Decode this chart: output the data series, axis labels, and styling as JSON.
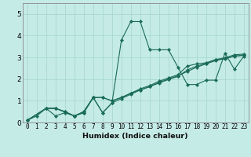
{
  "title": "",
  "xlabel": "Humidex (Indice chaleur)",
  "bg_color": "#c5ebe6",
  "grid_color": "#a8d8d2",
  "line_color": "#1a6b5a",
  "xlim": [
    -0.5,
    23.5
  ],
  "ylim": [
    0,
    5.5
  ],
  "yticks": [
    0,
    1,
    2,
    3,
    4,
    5
  ],
  "xticks": [
    0,
    1,
    2,
    3,
    4,
    5,
    6,
    7,
    8,
    9,
    10,
    11,
    12,
    13,
    14,
    15,
    16,
    17,
    18,
    19,
    20,
    21,
    22,
    23
  ],
  "series": [
    {
      "x": [
        0,
        1,
        2,
        3,
        4,
        5,
        6,
        7,
        8,
        9,
        10,
        11,
        12,
        13,
        14,
        15,
        16,
        17,
        18,
        19,
        20,
        21,
        22,
        23
      ],
      "y": [
        0.1,
        0.3,
        0.65,
        0.3,
        0.45,
        0.3,
        0.45,
        1.15,
        0.45,
        0.9,
        3.8,
        4.65,
        4.65,
        3.35,
        3.35,
        3.35,
        2.55,
        1.75,
        1.75,
        1.95,
        1.95,
        3.2,
        2.45,
        3.05
      ]
    },
    {
      "x": [
        0,
        2,
        3,
        5,
        6,
        7,
        8,
        9,
        10,
        11,
        12,
        13,
        14,
        15,
        16,
        17,
        18,
        19,
        20,
        21,
        22,
        23
      ],
      "y": [
        0.1,
        0.65,
        0.65,
        0.3,
        0.45,
        1.15,
        1.15,
        1.0,
        1.15,
        1.35,
        1.5,
        1.65,
        1.85,
        2.0,
        2.15,
        2.35,
        2.55,
        2.7,
        2.85,
        2.95,
        3.05,
        3.1
      ]
    },
    {
      "x": [
        0,
        2,
        3,
        4,
        5,
        6,
        7,
        8,
        9,
        10,
        11,
        12,
        13,
        14,
        15,
        16,
        17,
        18,
        19,
        20,
        21,
        22,
        23
      ],
      "y": [
        0.1,
        0.65,
        0.65,
        0.5,
        0.3,
        0.5,
        1.15,
        0.45,
        0.9,
        1.1,
        1.3,
        1.5,
        1.65,
        1.82,
        1.98,
        2.12,
        2.42,
        2.6,
        2.72,
        2.88,
        2.94,
        3.06,
        3.1
      ]
    },
    {
      "x": [
        0,
        2,
        3,
        4,
        5,
        6,
        7,
        8,
        9,
        10,
        11,
        12,
        13,
        14,
        15,
        16,
        17,
        18,
        19,
        20,
        21,
        22,
        23
      ],
      "y": [
        0.1,
        0.65,
        0.65,
        0.5,
        0.3,
        0.5,
        1.15,
        1.15,
        1.0,
        1.15,
        1.35,
        1.55,
        1.7,
        1.9,
        2.05,
        2.2,
        2.6,
        2.7,
        2.75,
        2.9,
        2.98,
        3.12,
        3.15
      ]
    }
  ]
}
